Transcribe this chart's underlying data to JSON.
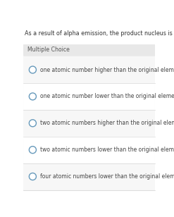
{
  "title": "As a result of alpha emission, the product nucleus is",
  "section_label": "Multiple Choice",
  "choices": [
    "one atomic number higher than the original element.",
    "one atomic number lower than the original element.",
    "two atomic numbers higher than the original element.",
    "two atomic numbers lower than the original element.",
    "four atomic numbers lower than the original element."
  ],
  "outer_bg": "#ebebeb",
  "white_bg": "#ffffff",
  "header_bg": "#e8e8e8",
  "row_bg_odd": "#f7f7f7",
  "row_bg_even": "#ffffff",
  "title_color": "#333333",
  "choice_color": "#444444",
  "section_color": "#555555",
  "circle_edge": "#6699bb",
  "circle_face": "#ffffff",
  "sep_color": "#d8d8d8",
  "title_fontsize": 5.8,
  "section_fontsize": 5.6,
  "choice_fontsize": 5.5
}
